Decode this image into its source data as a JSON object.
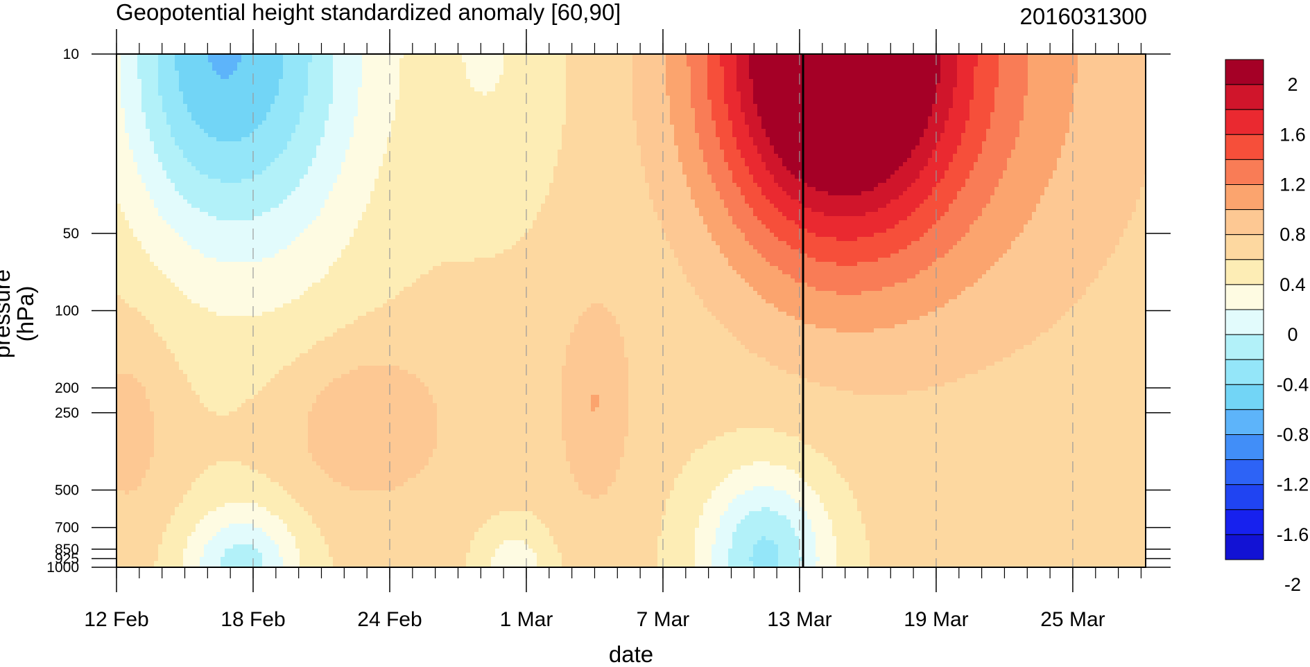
{
  "chart_data": {
    "type": "heatmap",
    "title": "Geopotential height standardized anomaly [60,90]",
    "subtitle": "2016031300",
    "xlabel": "date",
    "ylabel": "pressure (hPa)",
    "x_ticks": [
      "12 Feb",
      "18 Feb",
      "24 Feb",
      "1 Mar",
      "7 Mar",
      "13 Mar",
      "19 Mar",
      "25 Mar"
    ],
    "y_ticks": [
      10,
      50,
      100,
      200,
      250,
      500,
      700,
      850,
      925,
      1000
    ],
    "y_scale": "log",
    "y_inverted": true,
    "x_range": [
      "12 Feb",
      "28 Mar"
    ],
    "y_range": [
      1000,
      10
    ],
    "marker_line": "13 Mar",
    "contour_levels": [
      -2.2,
      -2,
      -1.8,
      -1.6,
      -1.4,
      -1.2,
      -1,
      -0.8,
      -0.6,
      -0.4,
      -0.2,
      0,
      0.2,
      0.4,
      0.6,
      0.8,
      1,
      1.2,
      1.4,
      1.6,
      1.8,
      2,
      2.2
    ],
    "colorbar_labels": [
      "2",
      "1.6",
      "1.2",
      "0.8",
      "0.4",
      "0",
      "-0.4",
      "-0.8",
      "-1.2",
      "-1.6",
      "-2"
    ],
    "colorbar_colors": [
      "#a50026",
      "#d0152b",
      "#ea2930",
      "#f64f3a",
      "#f97c56",
      "#fba46e",
      "#fdc893",
      "#fdd8a0",
      "#fdedb5",
      "#fefbe2",
      "#e2fbfc",
      "#b2f1f9",
      "#94e6f9",
      "#72d5f6",
      "#5db4fa",
      "#418ef8",
      "#2d63f6",
      "#2044f2",
      "#1721ee",
      "#1212d4"
    ],
    "regions": [
      {
        "anomaly": -0.3,
        "from": "12 Feb",
        "to": "27 Feb",
        "top_hPa": 10,
        "bottom_hPa": 200,
        "description_level": "negative"
      },
      {
        "anomaly": -0.9,
        "from": "16 Feb",
        "to": "20 Feb",
        "top_hPa": 10,
        "bottom_hPa": 100
      },
      {
        "anomaly": 0.5,
        "from": "2 Mar",
        "to": "28 Mar",
        "top_hPa": 10,
        "bottom_hPa": 1000
      },
      {
        "anomaly": 1.7,
        "from": "12 Mar",
        "to": "17 Mar",
        "top_hPa": 10,
        "bottom_hPa": 50
      },
      {
        "anomaly": -0.5,
        "from": "10 Mar",
        "to": "14 Mar",
        "top_hPa": 500,
        "bottom_hPa": 1000
      }
    ]
  }
}
